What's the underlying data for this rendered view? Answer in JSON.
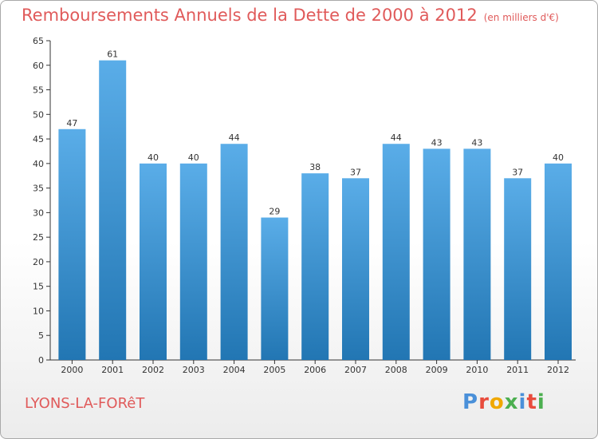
{
  "title": "Remboursements Annuels de la Dette de 2000 à 2012",
  "unit_note": "(en milliers d'€)",
  "commune": "LYONS-LA-FORêT",
  "logo": {
    "text": "Proxiti",
    "letter_colors": [
      "#4a90d9",
      "#e84c3d",
      "#f0a800",
      "#4caf50",
      "#4a90d9",
      "#e84c3d",
      "#4caf50"
    ]
  },
  "colors": {
    "bar_top": "#5aade8",
    "bar_bottom": "#2276b3",
    "title": "#e05a5a"
  },
  "chart_data": {
    "type": "bar",
    "categories": [
      "2000",
      "2001",
      "2002",
      "2003",
      "2004",
      "2005",
      "2006",
      "2007",
      "2008",
      "2009",
      "2010",
      "2011",
      "2012"
    ],
    "values": [
      47,
      61,
      40,
      40,
      44,
      29,
      38,
      37,
      44,
      43,
      43,
      37,
      40
    ],
    "ylim": [
      0,
      65
    ],
    "yticks": [
      0,
      5,
      10,
      15,
      20,
      25,
      30,
      35,
      40,
      45,
      50,
      55,
      60,
      65
    ],
    "grid": false,
    "xlabel": "",
    "ylabel": ""
  }
}
